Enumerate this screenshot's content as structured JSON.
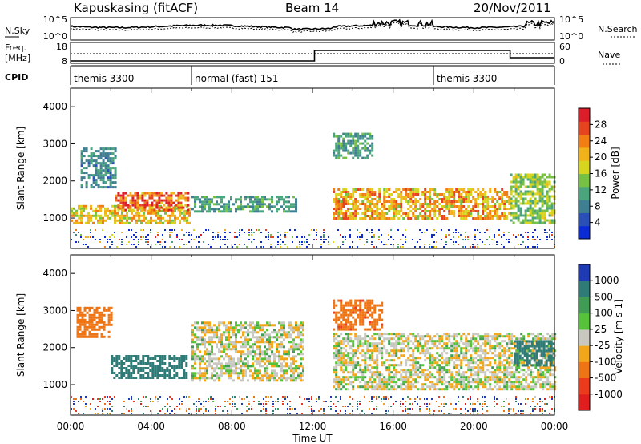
{
  "header": {
    "station": "Kapuskasing (fitACF)",
    "beam": "Beam 14",
    "date": "20/Nov/2011"
  },
  "panel_labels": {
    "nsky": "N.Sky",
    "nsearch": "N.Search",
    "freq_line1": "Freq.",
    "freq_line2": "[MHz]",
    "nave": "Nave",
    "cpid": "CPID"
  },
  "top_axes": {
    "nsky_ticks": [
      "10^5",
      "10^0"
    ],
    "nsearch_ticks": [
      "10^5",
      "10^0"
    ],
    "freq_ticks": [
      "18",
      "8"
    ],
    "nave_ticks": [
      "60",
      "0"
    ]
  },
  "cpid_segments": [
    {
      "label": "themis 3300",
      "start_h": 0.0
    },
    {
      "label": "normal (fast) 151",
      "start_h": 6.0
    },
    {
      "label": "themis 3300",
      "start_h": 18.0
    }
  ],
  "x_axis": {
    "label": "Time UT",
    "range_h": [
      0,
      24
    ],
    "tick_labels": [
      "00:00",
      "04:00",
      "08:00",
      "12:00",
      "16:00",
      "20:00",
      "00:00"
    ]
  },
  "y_axis": {
    "label": "Slant Range [km]",
    "range_km": [
      180,
      4500
    ],
    "tick_labels": [
      "1000",
      "2000",
      "3000",
      "4000"
    ]
  },
  "power_scale": {
    "label": "Power [dB]",
    "tick_labels": [
      "4",
      "8",
      "12",
      "16",
      "20",
      "24",
      "28"
    ],
    "colors": [
      "#0b2bd6",
      "#2a50b8",
      "#3f7f92",
      "#4aa57d",
      "#76c043",
      "#d7d51e",
      "#f2b31a",
      "#f27d12",
      "#e5441e",
      "#dc1e2a"
    ]
  },
  "velocity_scale": {
    "label": "Velocity [m s-1]",
    "tick_labels": [
      "1000",
      "500",
      "100",
      "25",
      "-25",
      "-100",
      "-500",
      "-1000"
    ],
    "colors": [
      "#1e3ab5",
      "#2f7b77",
      "#3f9c52",
      "#55c23a",
      "#c8c8c0",
      "#f2a61a",
      "#ee7414",
      "#ec3a1c",
      "#e01e1e"
    ]
  },
  "chart_data": [
    {
      "type": "heatmap",
      "title": "Power",
      "xlabel": "Time UT",
      "ylabel": "Slant Range [km]",
      "xlim": [
        0,
        24
      ],
      "ylim": [
        180,
        4500
      ],
      "colorbar": {
        "label": "Power [dB]",
        "range": [
          0,
          30
        ]
      },
      "regions": [
        {
          "t0": 0.0,
          "t1": 5.9,
          "r0": 850,
          "r1": 1350,
          "value": 18
        },
        {
          "t0": 2.2,
          "t1": 5.8,
          "r0": 1200,
          "r1": 1700,
          "value": 24
        },
        {
          "t0": 0.5,
          "t1": 2.2,
          "r0": 1800,
          "r1": 2900,
          "value": 8
        },
        {
          "t0": 6.0,
          "t1": 11.2,
          "r0": 1200,
          "r1": 1600,
          "value": 10
        },
        {
          "t0": 13.0,
          "t1": 21.8,
          "r0": 1000,
          "r1": 1800,
          "value": 20
        },
        {
          "t0": 21.8,
          "t1": 24.0,
          "r0": 900,
          "r1": 2200,
          "value": 14
        },
        {
          "t0": 13.0,
          "t1": 15.0,
          "r0": 2600,
          "r1": 3300,
          "value": 10
        }
      ]
    },
    {
      "type": "heatmap",
      "title": "Velocity",
      "xlabel": "Time UT",
      "ylabel": "Slant Range [km]",
      "xlim": [
        0,
        24
      ],
      "ylim": [
        180,
        4500
      ],
      "colorbar": {
        "label": "Velocity [m s-1]",
        "range": [
          -1000,
          1000
        ]
      },
      "regions": [
        {
          "t0": 2.0,
          "t1": 5.8,
          "r0": 1200,
          "r1": 1800,
          "value": 150
        },
        {
          "t0": 0.3,
          "t1": 2.0,
          "r0": 2300,
          "r1": 3100,
          "value": -300
        },
        {
          "t0": 6.0,
          "t1": 11.5,
          "r0": 1100,
          "r1": 2700,
          "value": 0
        },
        {
          "t0": 13.0,
          "t1": 24.0,
          "r0": 900,
          "r1": 2400,
          "value": 0
        },
        {
          "t0": 13.0,
          "t1": 15.5,
          "r0": 2500,
          "r1": 3300,
          "value": -400
        },
        {
          "t0": 22.0,
          "t1": 24.0,
          "r0": 1500,
          "r1": 2200,
          "value": 200
        }
      ]
    }
  ]
}
